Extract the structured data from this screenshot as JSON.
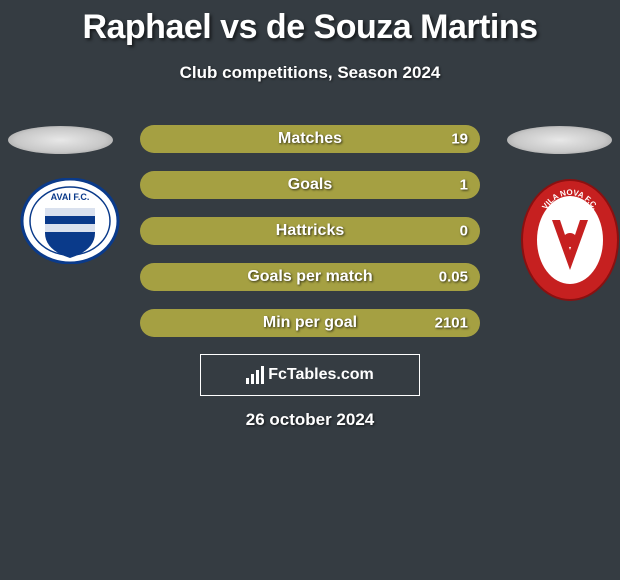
{
  "title": "Raphael vs de Souza Martins",
  "subtitle": "Club competitions, Season 2024",
  "background_color": "#353c42",
  "bar_color": "#a5a042",
  "text_color": "#ffffff",
  "stats": [
    {
      "label": "Matches",
      "left_value": "",
      "right_value": "19",
      "left_width": 0,
      "right_width": 100
    },
    {
      "label": "Goals",
      "left_value": "",
      "right_value": "1",
      "left_width": 0,
      "right_width": 100
    },
    {
      "label": "Hattricks",
      "left_value": "",
      "right_value": "0",
      "left_width": 0,
      "right_width": 100
    },
    {
      "label": "Goals per match",
      "left_value": "",
      "right_value": "0.05",
      "left_width": 0,
      "right_width": 100
    },
    {
      "label": "Min per goal",
      "left_value": "",
      "right_value": "2101",
      "left_width": 0,
      "right_width": 100
    }
  ],
  "badge_left": {
    "primary_color": "#0a3a8a",
    "secondary_color": "#ffffff",
    "text": "AVAI F.C."
  },
  "badge_right": {
    "primary_color": "#c62020",
    "secondary_color": "#ffffff",
    "text": "VILA NOVA F.C."
  },
  "footer": {
    "brand": "FcTables.com"
  },
  "date": "26 october 2024"
}
